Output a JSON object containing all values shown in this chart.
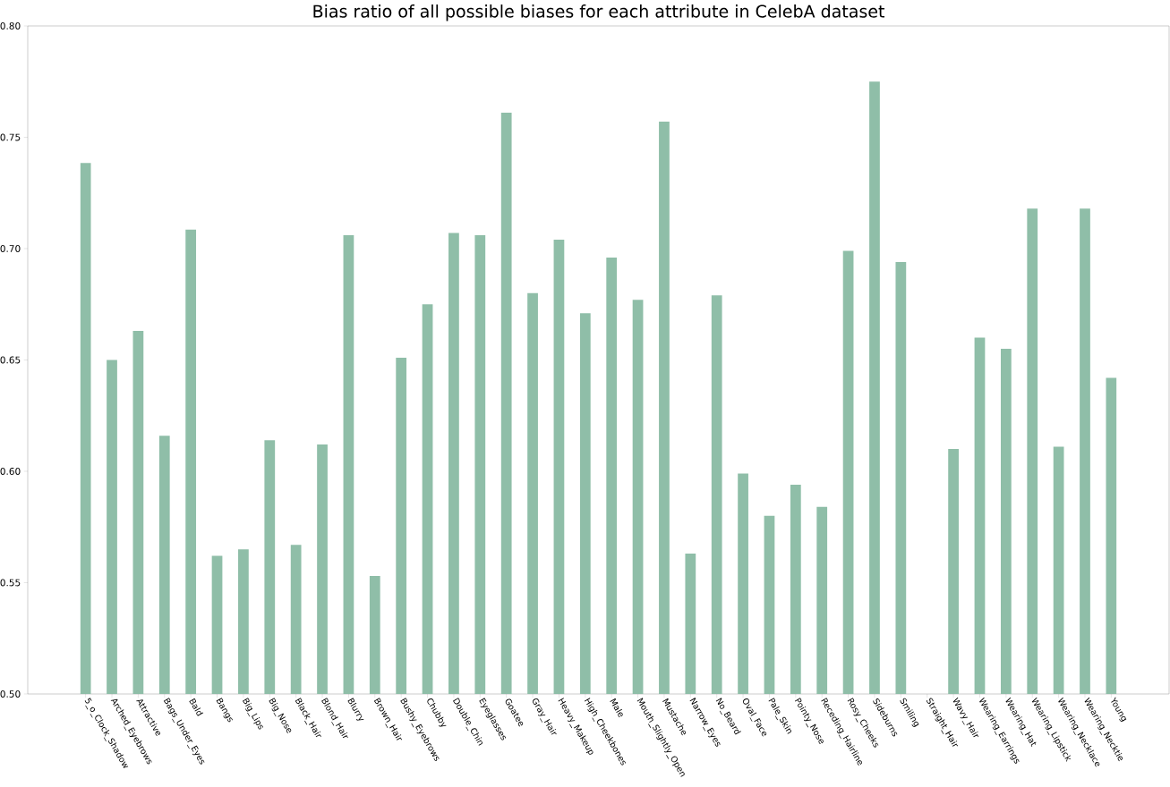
{
  "chart_data": {
    "type": "bar",
    "title": "Bias ratio of all possible biases for each attribute in CelebA dataset",
    "categories": [
      "5_o_Clock_Shadow",
      "Arched_Eyebrows",
      "Attractive",
      "Bags_Under_Eyes",
      "Bald",
      "Bangs",
      "Big_Lips",
      "Big_Nose",
      "Black_Hair",
      "Blond_Hair",
      "Blurry",
      "Brown_Hair",
      "Bushy_Eyebrows",
      "Chubby",
      "Double_Chin",
      "Eyeglasses",
      "Goatee",
      "Gray_Hair",
      "Heavy_Makeup",
      "High_Cheekbones",
      "Male",
      "Mouth_Slightly_Open",
      "Mustache",
      "Narrow_Eyes",
      "No_Beard",
      "Oval_Face",
      "Pale_Skin",
      "Pointy_Nose",
      "Receding_Hairline",
      "Rosy_Cheeks",
      "Sideburns",
      "Smiling",
      "Straight_Hair",
      "Wavy_Hair",
      "Wearing_Earrings",
      "Wearing_Hat",
      "Wearing_Lipstick",
      "Wearing_Necklace",
      "Wearing_Necktie",
      "Young"
    ],
    "values": [
      0.7385,
      0.65,
      0.663,
      0.616,
      0.7085,
      0.562,
      0.565,
      0.614,
      0.567,
      0.612,
      0.706,
      0.553,
      0.651,
      0.675,
      0.707,
      0.706,
      0.761,
      0.68,
      0.704,
      0.671,
      0.696,
      0.677,
      0.757,
      0.563,
      0.679,
      0.599,
      0.58,
      0.594,
      0.584,
      0.699,
      0.775,
      0.694,
      null,
      0.61,
      0.66,
      0.655,
      0.718,
      0.611,
      0.718,
      0.642
    ],
    "color": "#8fbea8",
    "ylim": [
      0.5,
      0.8
    ],
    "yticks": [
      {
        "value": 0.5,
        "label": "0.50"
      },
      {
        "value": 0.55,
        "label": "0.55"
      },
      {
        "value": 0.6,
        "label": "0.60"
      },
      {
        "value": 0.65,
        "label": "0.65"
      },
      {
        "value": 0.7,
        "label": "0.70"
      },
      {
        "value": 0.75,
        "label": "0.75"
      },
      {
        "value": 0.8,
        "label": "0.80"
      }
    ],
    "grid": false
  }
}
